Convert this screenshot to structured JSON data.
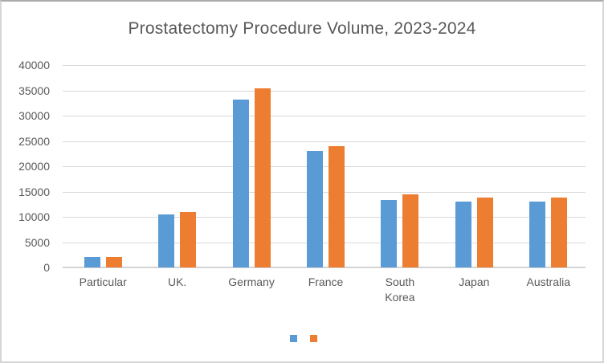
{
  "chart_data": {
    "type": "bar",
    "title": "Prostatectomy Procedure Volume, 2023-2024",
    "categories": [
      "Particular",
      "UK.",
      "Germany",
      "France",
      "South Korea",
      "Japan",
      "Australia"
    ],
    "series": [
      {
        "name": "",
        "key": "series-1-blue",
        "color": "#5B9BD5",
        "values": [
          2000,
          10500,
          33100,
          23000,
          13300,
          13000,
          13000
        ]
      },
      {
        "name": "",
        "key": "series-2-orange",
        "color": "#ED7D31",
        "values": [
          2000,
          11000,
          35400,
          23900,
          14400,
          13800,
          13800
        ]
      }
    ],
    "ylim": [
      0,
      40000
    ],
    "y_tick_step": 5000,
    "y_tick_labels": [
      "0",
      "5000",
      "10000",
      "15000",
      "20000",
      "25000",
      "30000",
      "35000",
      "40000"
    ],
    "xlabel": "",
    "ylabel": "",
    "grid": true,
    "legend_position": "bottom-center",
    "legend_labels_visible": false,
    "colors": {
      "text": "#595959",
      "gridline": "#D9D9D9",
      "axis_line": "#D3D3D3",
      "background": "#FFFFFF"
    }
  }
}
